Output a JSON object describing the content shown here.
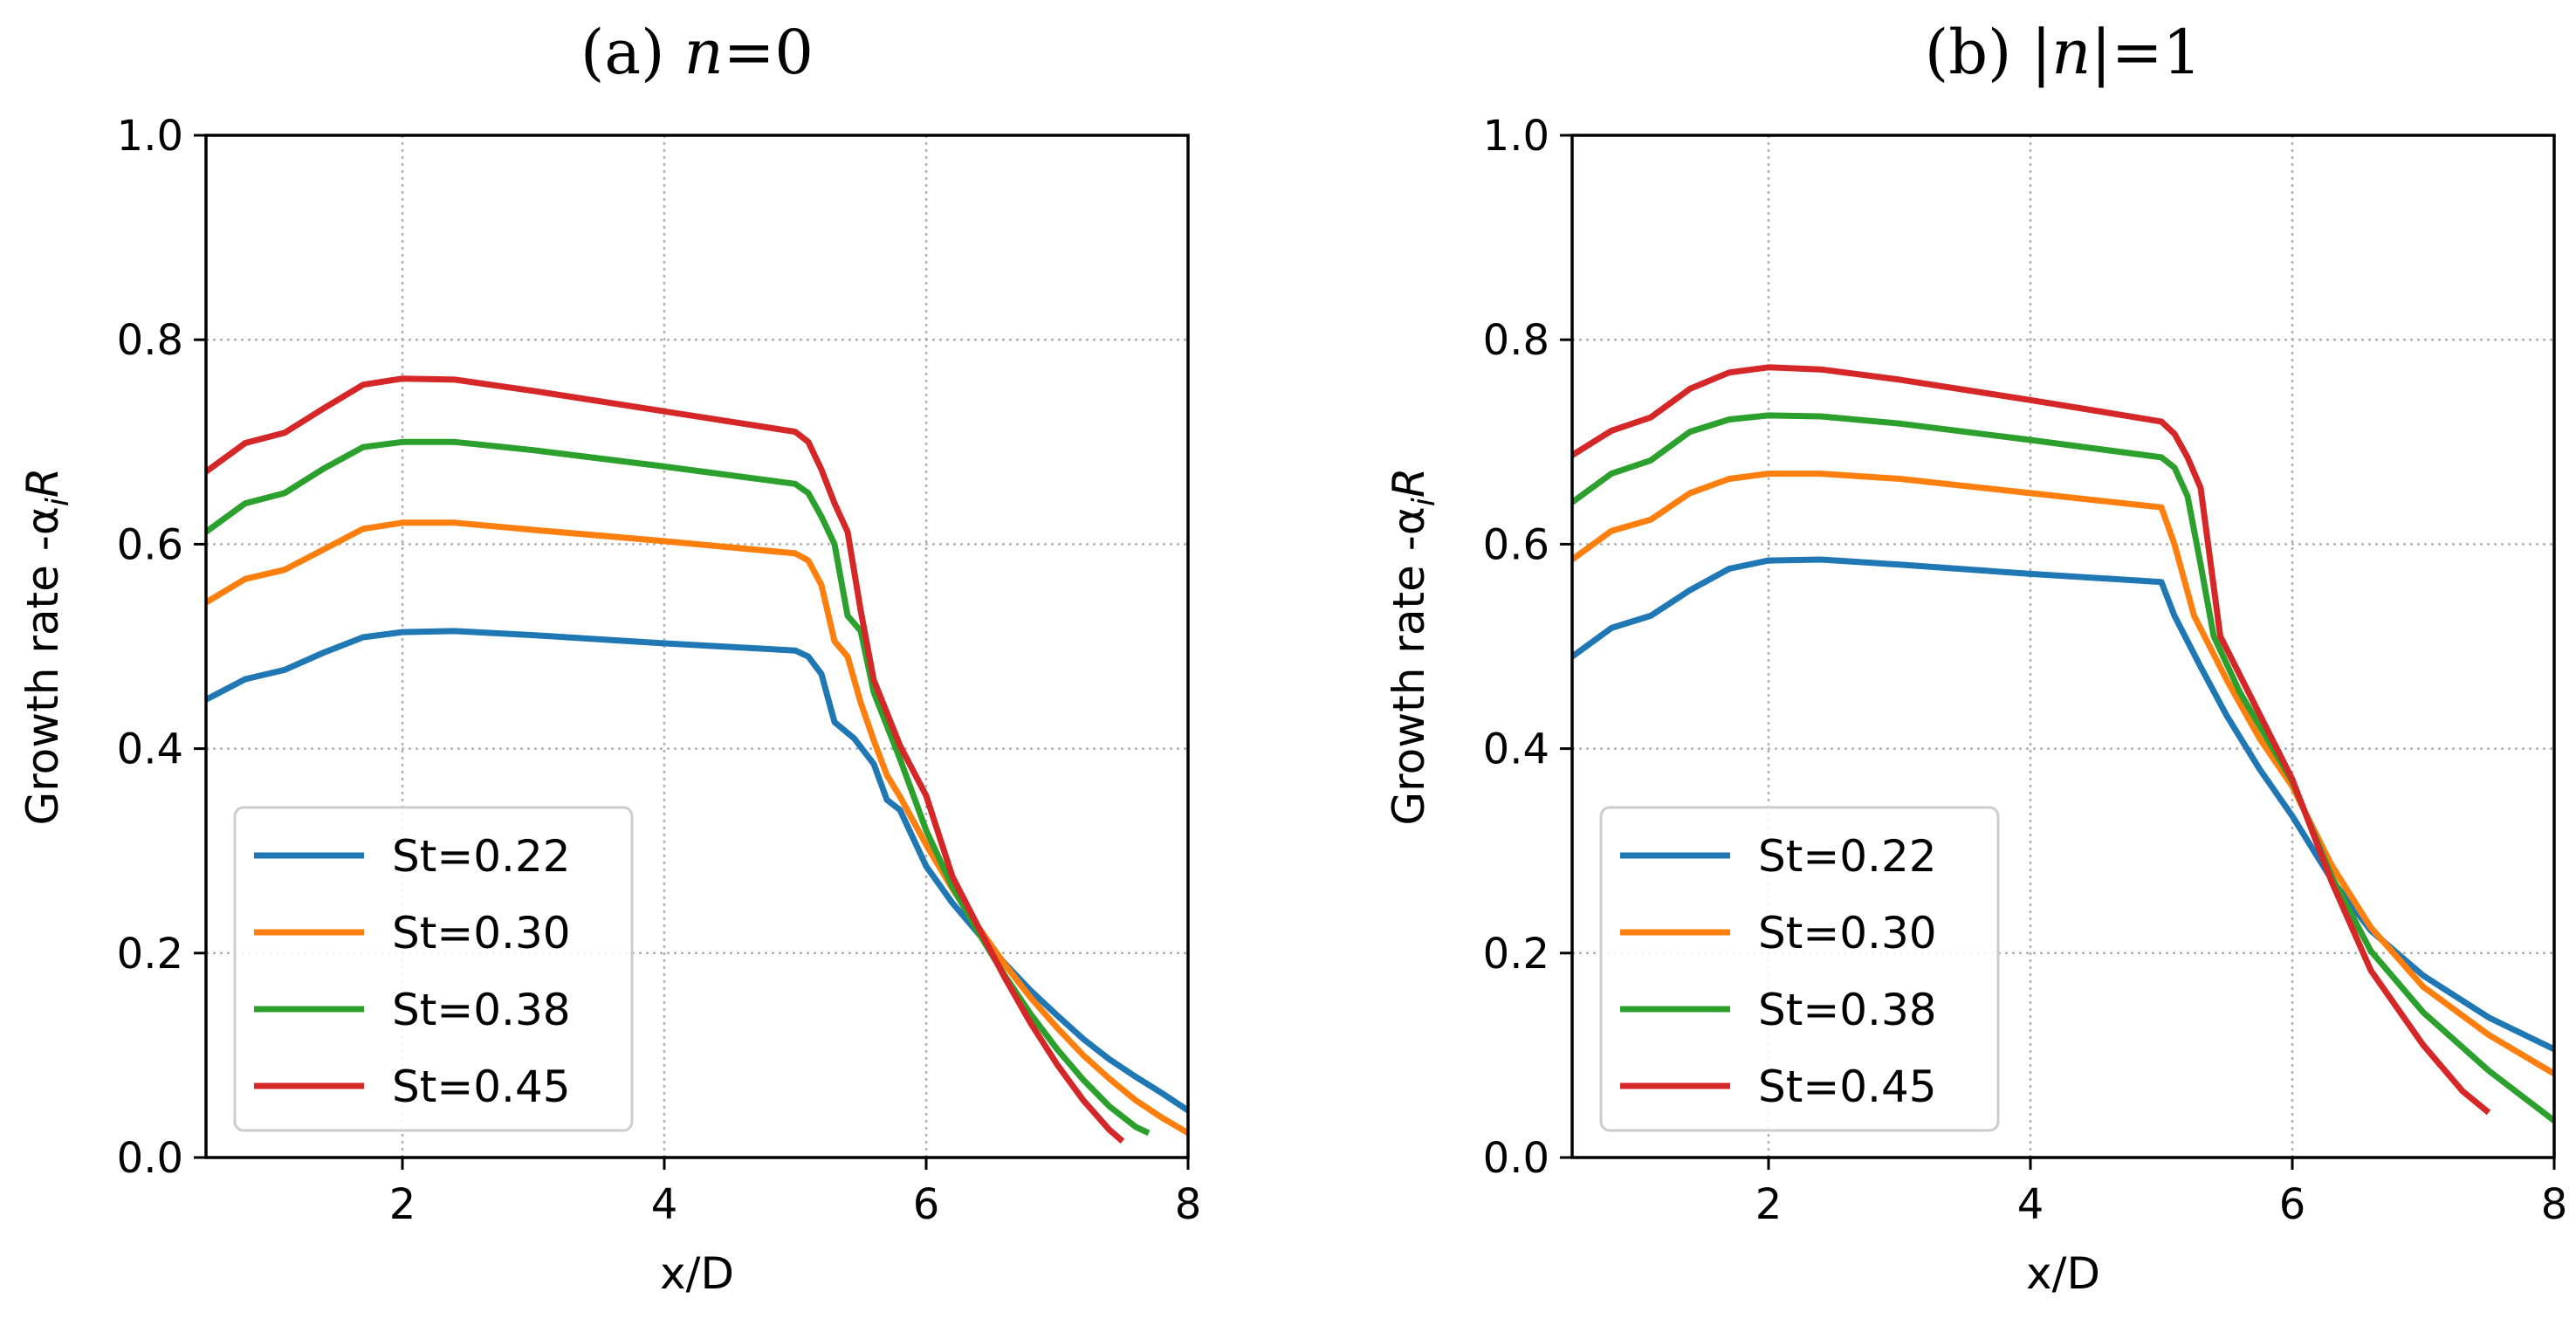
{
  "figure": {
    "title": ""
  },
  "chart_data": [
    {
      "type": "line",
      "title": "(a) n=0",
      "title_prefix": "(a) ",
      "title_var": "n",
      "title_suffix": "=0",
      "xlabel": "x/D",
      "ylabel": "Growth rate  -α",
      "ylabel_sub": "i",
      "ylabel_var": "R",
      "xlim": [
        0.5,
        8
      ],
      "ylim": [
        0.0,
        1.0
      ],
      "xticks": [
        2,
        4,
        6,
        8
      ],
      "yticks": [
        0.0,
        0.2,
        0.4,
        0.6,
        0.8,
        1.0
      ],
      "xtick_labels": [
        "2",
        "4",
        "6",
        "8"
      ],
      "ytick_labels": [
        "0.0",
        "0.2",
        "0.4",
        "0.6",
        "0.8",
        "1.0"
      ],
      "grid": true,
      "legend_position": "lower-left",
      "series": [
        {
          "name": "St=0.22",
          "color": "#1f77b4",
          "points": [
            [
              0.5,
              0.448
            ],
            [
              0.8,
              0.468
            ],
            [
              1.1,
              0.477
            ],
            [
              1.4,
              0.494
            ],
            [
              1.7,
              0.509
            ],
            [
              2.0,
              0.514
            ],
            [
              2.4,
              0.515
            ],
            [
              3.0,
              0.511
            ],
            [
              4.0,
              0.503
            ],
            [
              5.0,
              0.496
            ],
            [
              5.1,
              0.49
            ],
            [
              5.2,
              0.473
            ],
            [
              5.3,
              0.426
            ],
            [
              5.45,
              0.41
            ],
            [
              5.6,
              0.385
            ],
            [
              5.7,
              0.35
            ],
            [
              5.8,
              0.34
            ],
            [
              6.0,
              0.285
            ],
            [
              6.2,
              0.249
            ],
            [
              6.4,
              0.219
            ],
            [
              6.6,
              0.19
            ],
            [
              6.8,
              0.163
            ],
            [
              7.0,
              0.139
            ],
            [
              7.2,
              0.116
            ],
            [
              7.4,
              0.096
            ],
            [
              7.6,
              0.079
            ],
            [
              7.8,
              0.063
            ],
            [
              8.0,
              0.046
            ]
          ]
        },
        {
          "name": "St=0.30",
          "color": "#ff7f0e",
          "points": [
            [
              0.5,
              0.543
            ],
            [
              0.8,
              0.566
            ],
            [
              1.1,
              0.575
            ],
            [
              1.4,
              0.595
            ],
            [
              1.7,
              0.615
            ],
            [
              2.0,
              0.621
            ],
            [
              2.4,
              0.621
            ],
            [
              3.0,
              0.614
            ],
            [
              4.0,
              0.603
            ],
            [
              5.0,
              0.591
            ],
            [
              5.1,
              0.584
            ],
            [
              5.2,
              0.56
            ],
            [
              5.3,
              0.505
            ],
            [
              5.4,
              0.49
            ],
            [
              5.5,
              0.445
            ],
            [
              5.6,
              0.408
            ],
            [
              5.7,
              0.374
            ],
            [
              5.8,
              0.353
            ],
            [
              6.0,
              0.306
            ],
            [
              6.2,
              0.263
            ],
            [
              6.4,
              0.225
            ],
            [
              6.6,
              0.189
            ],
            [
              6.8,
              0.156
            ],
            [
              7.0,
              0.127
            ],
            [
              7.2,
              0.1
            ],
            [
              7.4,
              0.077
            ],
            [
              7.6,
              0.056
            ],
            [
              7.8,
              0.039
            ],
            [
              8.0,
              0.024
            ]
          ]
        },
        {
          "name": "St=0.38",
          "color": "#2ca02c",
          "points": [
            [
              0.5,
              0.612
            ],
            [
              0.8,
              0.64
            ],
            [
              1.1,
              0.65
            ],
            [
              1.4,
              0.674
            ],
            [
              1.7,
              0.695
            ],
            [
              2.0,
              0.7
            ],
            [
              2.4,
              0.7
            ],
            [
              3.0,
              0.692
            ],
            [
              4.0,
              0.676
            ],
            [
              5.0,
              0.659
            ],
            [
              5.1,
              0.65
            ],
            [
              5.2,
              0.627
            ],
            [
              5.3,
              0.6
            ],
            [
              5.4,
              0.53
            ],
            [
              5.5,
              0.515
            ],
            [
              5.6,
              0.455
            ],
            [
              5.8,
              0.39
            ],
            [
              6.0,
              0.32
            ],
            [
              6.2,
              0.265
            ],
            [
              6.4,
              0.22
            ],
            [
              6.6,
              0.178
            ],
            [
              6.8,
              0.14
            ],
            [
              7.0,
              0.106
            ],
            [
              7.2,
              0.076
            ],
            [
              7.4,
              0.05
            ],
            [
              7.6,
              0.03
            ],
            [
              7.7,
              0.024
            ]
          ]
        },
        {
          "name": "St=0.45",
          "color": "#d62728",
          "points": [
            [
              0.5,
              0.671
            ],
            [
              0.8,
              0.699
            ],
            [
              1.1,
              0.709
            ],
            [
              1.4,
              0.733
            ],
            [
              1.7,
              0.756
            ],
            [
              2.0,
              0.762
            ],
            [
              2.4,
              0.761
            ],
            [
              3.0,
              0.75
            ],
            [
              4.0,
              0.73
            ],
            [
              5.0,
              0.71
            ],
            [
              5.1,
              0.7
            ],
            [
              5.2,
              0.673
            ],
            [
              5.3,
              0.64
            ],
            [
              5.4,
              0.612
            ],
            [
              5.5,
              0.535
            ],
            [
              5.6,
              0.467
            ],
            [
              5.8,
              0.403
            ],
            [
              6.0,
              0.354
            ],
            [
              6.2,
              0.275
            ],
            [
              6.4,
              0.225
            ],
            [
              6.6,
              0.176
            ],
            [
              6.8,
              0.131
            ],
            [
              7.0,
              0.091
            ],
            [
              7.2,
              0.056
            ],
            [
              7.4,
              0.027
            ],
            [
              7.5,
              0.016
            ]
          ]
        }
      ]
    },
    {
      "type": "line",
      "title": "(b) |n|=1",
      "title_prefix": "(b) ",
      "title_var": "|n|",
      "title_suffix": "=1",
      "xlabel": "x/D",
      "ylabel": "Growth rate  -α",
      "ylabel_sub": "i",
      "ylabel_var": "R",
      "xlim": [
        0.5,
        8
      ],
      "ylim": [
        0.0,
        1.0
      ],
      "xticks": [
        2,
        4,
        6,
        8
      ],
      "yticks": [
        0.0,
        0.2,
        0.4,
        0.6,
        0.8,
        1.0
      ],
      "xtick_labels": [
        "2",
        "4",
        "6",
        "8"
      ],
      "ytick_labels": [
        "0.0",
        "0.2",
        "0.4",
        "0.6",
        "0.8",
        "1.0"
      ],
      "grid": true,
      "legend_position": "lower-left",
      "series": [
        {
          "name": "St=0.22",
          "color": "#1f77b4",
          "points": [
            [
              0.5,
              0.49
            ],
            [
              0.8,
              0.518
            ],
            [
              1.1,
              0.53
            ],
            [
              1.4,
              0.555
            ],
            [
              1.7,
              0.576
            ],
            [
              2.0,
              0.584
            ],
            [
              2.4,
              0.585
            ],
            [
              3.0,
              0.58
            ],
            [
              4.0,
              0.571
            ],
            [
              5.0,
              0.563
            ],
            [
              5.1,
              0.53
            ],
            [
              5.3,
              0.48
            ],
            [
              5.5,
              0.432
            ],
            [
              5.75,
              0.38
            ],
            [
              6.0,
              0.334
            ],
            [
              6.3,
              0.272
            ],
            [
              6.6,
              0.222
            ],
            [
              7.0,
              0.178
            ],
            [
              7.5,
              0.137
            ],
            [
              8.0,
              0.106
            ]
          ]
        },
        {
          "name": "St=0.30",
          "color": "#ff7f0e",
          "points": [
            [
              0.5,
              0.585
            ],
            [
              0.8,
              0.613
            ],
            [
              1.1,
              0.624
            ],
            [
              1.4,
              0.65
            ],
            [
              1.7,
              0.664
            ],
            [
              2.0,
              0.669
            ],
            [
              2.4,
              0.669
            ],
            [
              3.0,
              0.664
            ],
            [
              4.0,
              0.65
            ],
            [
              5.0,
              0.636
            ],
            [
              5.1,
              0.6
            ],
            [
              5.25,
              0.53
            ],
            [
              5.5,
              0.467
            ],
            [
              5.75,
              0.41
            ],
            [
              6.0,
              0.363
            ],
            [
              6.3,
              0.286
            ],
            [
              6.6,
              0.225
            ],
            [
              7.0,
              0.167
            ],
            [
              7.5,
              0.12
            ],
            [
              8.0,
              0.082
            ]
          ]
        },
        {
          "name": "St=0.38",
          "color": "#2ca02c",
          "points": [
            [
              0.5,
              0.641
            ],
            [
              0.8,
              0.669
            ],
            [
              1.1,
              0.682
            ],
            [
              1.4,
              0.71
            ],
            [
              1.7,
              0.722
            ],
            [
              2.0,
              0.726
            ],
            [
              2.4,
              0.725
            ],
            [
              3.0,
              0.718
            ],
            [
              4.0,
              0.702
            ],
            [
              5.0,
              0.685
            ],
            [
              5.1,
              0.675
            ],
            [
              5.2,
              0.647
            ],
            [
              5.3,
              0.58
            ],
            [
              5.4,
              0.51
            ],
            [
              5.6,
              0.455
            ],
            [
              6.0,
              0.368
            ],
            [
              6.3,
              0.275
            ],
            [
              6.6,
              0.202
            ],
            [
              7.0,
              0.142
            ],
            [
              7.5,
              0.085
            ],
            [
              8.0,
              0.036
            ]
          ]
        },
        {
          "name": "St=0.45",
          "color": "#d62728",
          "points": [
            [
              0.5,
              0.687
            ],
            [
              0.8,
              0.711
            ],
            [
              1.1,
              0.724
            ],
            [
              1.4,
              0.752
            ],
            [
              1.7,
              0.768
            ],
            [
              2.0,
              0.773
            ],
            [
              2.4,
              0.771
            ],
            [
              3.0,
              0.761
            ],
            [
              4.0,
              0.741
            ],
            [
              5.0,
              0.72
            ],
            [
              5.1,
              0.708
            ],
            [
              5.2,
              0.685
            ],
            [
              5.3,
              0.655
            ],
            [
              5.45,
              0.51
            ],
            [
              6.0,
              0.37
            ],
            [
              6.3,
              0.27
            ],
            [
              6.6,
              0.183
            ],
            [
              7.0,
              0.11
            ],
            [
              7.3,
              0.065
            ],
            [
              7.5,
              0.044
            ]
          ]
        }
      ]
    }
  ]
}
